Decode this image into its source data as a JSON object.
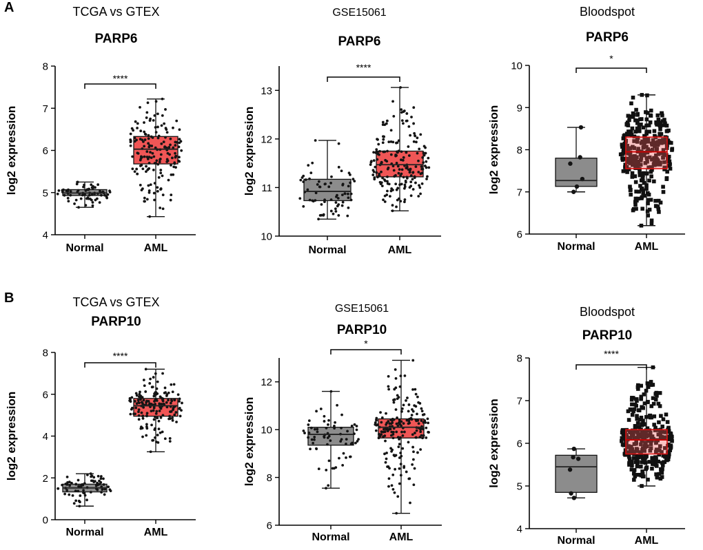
{
  "panels": [
    {
      "letter": "A"
    },
    {
      "letter": "B"
    }
  ],
  "colors": {
    "normal_fill": "#8c8c8c",
    "aml_fill": "#f05656",
    "point": "#141414",
    "aml_point_dense": "#111111",
    "median": "#222222",
    "axis": "#000000"
  },
  "chart_data": [
    {
      "type": "box",
      "panel": "A",
      "row": 0,
      "col": 0,
      "dataset": "TCGA vs GTEX",
      "gene": "PARP6",
      "title": "TCGA vs GTEX",
      "subtitle": "PARP6",
      "xlabel": "",
      "ylabel": "log2 expression",
      "ylim": [
        4,
        8
      ],
      "yticks": [
        4,
        5,
        6,
        7,
        8
      ],
      "categories": [
        "Normal",
        "AML"
      ],
      "groups": [
        {
          "name": "Normal",
          "min": 4.65,
          "q1": 4.93,
          "median": 4.99,
          "q3": 5.07,
          "max": 5.25,
          "n": 70,
          "jitter": 0.055,
          "style": "grey"
        },
        {
          "name": "AML",
          "min": 4.43,
          "q1": 5.68,
          "median": 6.03,
          "q3": 6.33,
          "max": 7.22,
          "n": 170,
          "jitter": 0.085,
          "style": "red-overlay"
        }
      ],
      "significance": "****"
    },
    {
      "type": "box",
      "panel": "A",
      "row": 0,
      "col": 1,
      "dataset": "GSE15061",
      "gene": "PARP6",
      "title": "GSE15061",
      "subtitle": "PARP6",
      "xlabel": "",
      "ylabel": "log2 expression",
      "ylim": [
        10,
        13.5
      ],
      "yticks": [
        10,
        11,
        12,
        13
      ],
      "categories": [
        "Normal",
        "AML"
      ],
      "groups": [
        {
          "name": "Normal",
          "min": 10.35,
          "q1": 10.73,
          "median": 10.92,
          "q3": 11.17,
          "max": 11.97,
          "n": 70,
          "jitter": 0.08,
          "style": "grey"
        },
        {
          "name": "AML",
          "min": 10.52,
          "q1": 11.22,
          "median": 11.47,
          "q3": 11.75,
          "max": 13.06,
          "n": 200,
          "jitter": 0.09,
          "style": "red-overlay"
        }
      ],
      "significance": "****"
    },
    {
      "type": "box",
      "panel": "A",
      "row": 0,
      "col": 2,
      "dataset": "Bloodspot",
      "gene": "PARP6",
      "title": "Bloodspot",
      "subtitle": "PARP6",
      "xlabel": "",
      "ylabel": "log2 expression",
      "ylim": [
        6,
        10
      ],
      "yticks": [
        6,
        7,
        8,
        9,
        10
      ],
      "categories": [
        "Normal",
        "AML"
      ],
      "groups": [
        {
          "name": "Normal",
          "min": 7.0,
          "q1": 7.13,
          "median": 7.27,
          "q3": 7.8,
          "max": 8.53,
          "n": 6,
          "jitter": 0.05,
          "style": "grey"
        },
        {
          "name": "AML",
          "min": 6.2,
          "q1": 7.55,
          "median": 7.95,
          "q3": 8.3,
          "max": 9.3,
          "n": 320,
          "jitter": 0.13,
          "style": "red-underlay"
        }
      ],
      "significance": "*"
    },
    {
      "type": "box",
      "panel": "B",
      "row": 1,
      "col": 0,
      "dataset": "TCGA vs GTEX",
      "gene": "PARP10",
      "title": "TCGA vs GTEX",
      "subtitle": "PARP10",
      "xlabel": "",
      "ylabel": "log2 expression",
      "ylim": [
        0,
        8
      ],
      "yticks": [
        0,
        2,
        4,
        6,
        8
      ],
      "categories": [
        "Normal",
        "AML"
      ],
      "groups": [
        {
          "name": "Normal",
          "min": 0.65,
          "q1": 1.33,
          "median": 1.52,
          "q3": 1.7,
          "max": 2.2,
          "n": 70,
          "jitter": 0.085,
          "style": "grey"
        },
        {
          "name": "AML",
          "min": 3.25,
          "q1": 4.95,
          "median": 5.45,
          "q3": 5.8,
          "max": 7.2,
          "n": 170,
          "jitter": 0.1,
          "style": "red-overlay"
        }
      ],
      "significance": "****"
    },
    {
      "type": "box",
      "panel": "B",
      "row": 1,
      "col": 1,
      "dataset": "GSE15061",
      "gene": "PARP10",
      "title": "GSE15061",
      "subtitle": "PARP10",
      "xlabel": "",
      "ylabel": "log2 expression",
      "ylim": [
        6,
        13
      ],
      "yticks": [
        6,
        8,
        10,
        12
      ],
      "categories": [
        "Normal",
        "AML"
      ],
      "groups": [
        {
          "name": "Normal",
          "min": 7.55,
          "q1": 9.35,
          "median": 9.8,
          "q3": 10.1,
          "max": 11.6,
          "n": 70,
          "jitter": 0.07,
          "style": "grey"
        },
        {
          "name": "AML",
          "min": 6.5,
          "q1": 9.65,
          "median": 10.1,
          "q3": 10.45,
          "max": 12.9,
          "n": 200,
          "jitter": 0.09,
          "style": "red-overlay"
        }
      ],
      "significance": "*"
    },
    {
      "type": "box",
      "panel": "B",
      "row": 1,
      "col": 2,
      "dataset": "Bloodspot",
      "gene": "PARP10",
      "title": "Bloodspot",
      "subtitle": "PARP10",
      "xlabel": "",
      "ylabel": "log2 expression",
      "ylim": [
        4,
        8
      ],
      "yticks": [
        4,
        5,
        6,
        7,
        8
      ],
      "categories": [
        "Normal",
        "AML"
      ],
      "groups": [
        {
          "name": "Normal",
          "min": 4.72,
          "q1": 4.85,
          "median": 5.45,
          "q3": 5.72,
          "max": 5.87,
          "n": 6,
          "jitter": 0.05,
          "style": "grey"
        },
        {
          "name": "AML",
          "min": 5.0,
          "q1": 5.75,
          "median": 6.08,
          "q3": 6.32,
          "max": 7.78,
          "n": 320,
          "jitter": 0.13,
          "style": "red-underlay"
        }
      ],
      "significance": "****"
    }
  ]
}
